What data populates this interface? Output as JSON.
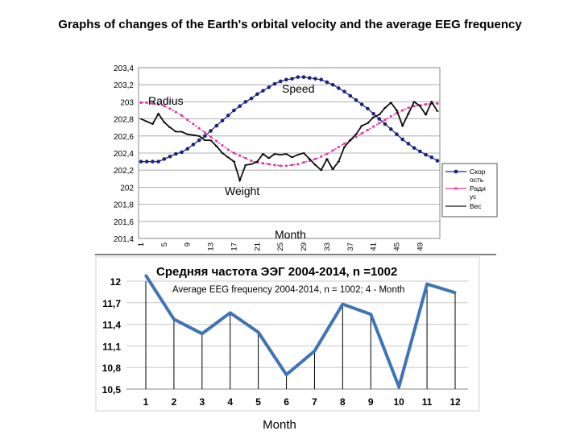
{
  "slide": {
    "title": "Graphs of changes of the Earth's orbital velocity and the average EEG frequency",
    "bottom_caption": "Month"
  },
  "chart_data": [
    {
      "type": "line",
      "x": [
        1,
        2,
        3,
        4,
        5,
        6,
        7,
        8,
        9,
        10,
        11,
        12,
        13,
        14,
        15,
        16,
        17,
        18,
        19,
        20,
        21,
        22,
        23,
        24,
        25,
        26,
        27,
        28,
        29,
        30,
        31,
        32,
        33,
        34,
        35,
        36,
        37,
        38,
        39,
        40,
        41,
        42,
        43,
        44,
        45,
        46,
        47,
        48,
        49,
        50,
        51,
        52
      ],
      "x_ticks": [
        "1",
        "5",
        "9",
        "13",
        "17",
        "21",
        "25",
        "29",
        "33",
        "37",
        "41",
        "45",
        "49"
      ],
      "ylim": [
        201.4,
        203.4
      ],
      "y_ticks": [
        "203,4",
        "203,2",
        "203",
        "202,8",
        "202,6",
        "202,4",
        "202,2",
        "202",
        "201,8",
        "201,6",
        "201,4"
      ],
      "grid": true,
      "legend_position": "right",
      "annotations": {
        "speed": "Speed",
        "radius": "Radius",
        "weight": "Weight",
        "month": "Month"
      },
      "series": [
        {
          "name": "Скорость",
          "legend_lines": [
            "Скор",
            "ость"
          ],
          "color": "#1a237e",
          "values": [
            202.3,
            202.3,
            202.3,
            202.3,
            202.33,
            202.36,
            202.39,
            202.41,
            202.45,
            202.5,
            202.55,
            202.6,
            202.66,
            202.72,
            202.78,
            202.84,
            202.9,
            202.95,
            203.0,
            203.04,
            203.09,
            203.13,
            203.17,
            203.21,
            203.24,
            203.26,
            203.27,
            203.29,
            203.29,
            203.28,
            203.27,
            203.26,
            203.23,
            203.2,
            203.16,
            203.12,
            203.07,
            203.02,
            202.97,
            202.92,
            202.86,
            202.8,
            202.74,
            202.68,
            202.62,
            202.56,
            202.51,
            202.46,
            202.42,
            202.38,
            202.35,
            202.31
          ]
        },
        {
          "name": "Радиус",
          "legend_lines": [
            "Ради",
            "ус"
          ],
          "color": "#e0349a",
          "values": [
            202.99,
            202.99,
            202.98,
            202.97,
            202.95,
            202.92,
            202.88,
            202.84,
            202.79,
            202.74,
            202.69,
            202.64,
            202.59,
            202.54,
            202.49,
            202.44,
            202.4,
            202.37,
            202.34,
            202.31,
            202.29,
            202.28,
            202.27,
            202.26,
            202.25,
            202.25,
            202.26,
            202.27,
            202.29,
            202.31,
            202.33,
            202.36,
            202.39,
            202.43,
            202.47,
            202.51,
            202.55,
            202.59,
            202.63,
            202.67,
            202.71,
            202.75,
            202.79,
            202.83,
            202.87,
            202.9,
            202.93,
            202.95,
            202.96,
            202.97,
            202.98,
            202.98
          ]
        },
        {
          "name": "Вес",
          "legend_lines": [
            "Вес"
          ],
          "color": "#111111",
          "values": [
            202.8,
            202.77,
            202.74,
            202.86,
            202.76,
            202.7,
            202.65,
            202.65,
            202.62,
            202.61,
            202.6,
            202.55,
            202.55,
            202.48,
            202.4,
            202.35,
            202.3,
            202.08,
            202.26,
            202.27,
            202.3,
            202.39,
            202.34,
            202.39,
            202.38,
            202.39,
            202.35,
            202.38,
            202.4,
            202.33,
            202.26,
            202.2,
            202.33,
            202.21,
            202.3,
            202.47,
            202.55,
            202.62,
            202.72,
            202.75,
            202.82,
            202.85,
            202.93,
            202.99,
            202.9,
            202.72,
            202.86,
            203.0,
            202.95,
            202.85,
            203.0,
            202.89
          ]
        }
      ]
    },
    {
      "type": "line",
      "title": "Средняя частота ЭЭГ  2004-2014, n =1002",
      "subtitle": "Average EEG frequency 2004-2014, n = 1002; 4 - Month",
      "categories": [
        "1",
        "2",
        "3",
        "4",
        "5",
        "6",
        "7",
        "8",
        "9",
        "10",
        "11",
        "12"
      ],
      "values": [
        12.08,
        11.47,
        11.27,
        11.56,
        11.29,
        10.7,
        11.03,
        11.68,
        11.54,
        10.53,
        11.96,
        11.84
      ],
      "ylim": [
        10.5,
        12.0
      ],
      "y_ticks": [
        "12",
        "11,7",
        "11,4",
        "11,1",
        "10,8",
        "10,5"
      ],
      "drop_lines": true,
      "color": "#3f74b5"
    }
  ]
}
